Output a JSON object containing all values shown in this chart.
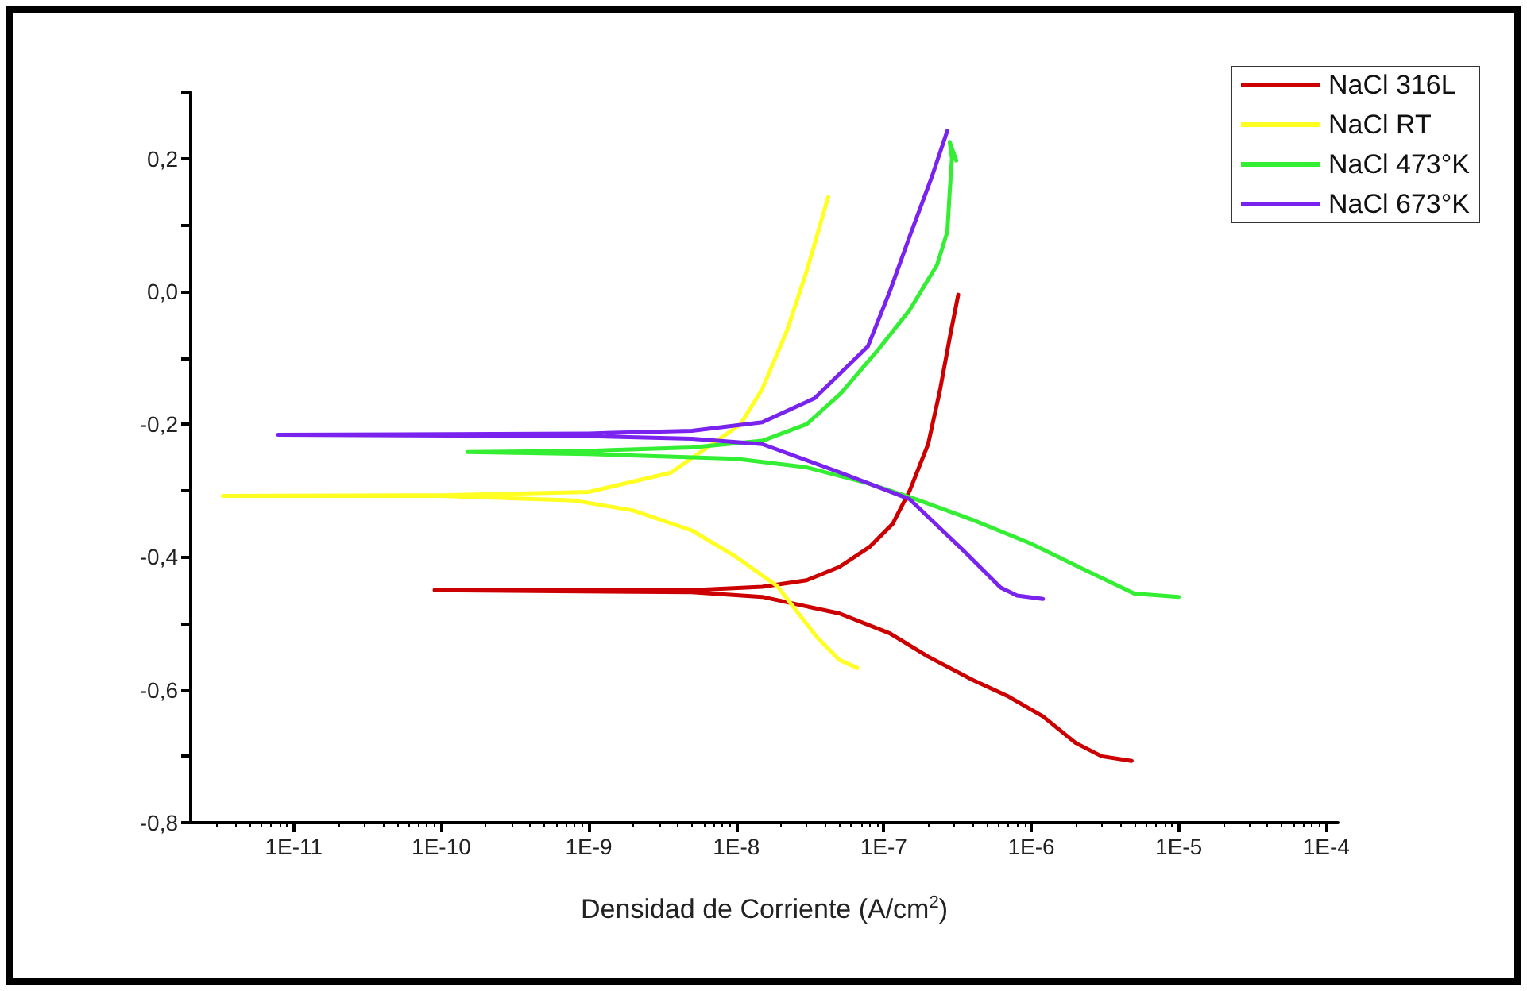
{
  "chart_data": {
    "type": "line",
    "xlabel": "Densidad de Corriente (A/cm$^{2}$)",
    "log": "x",
    "grid": false,
    "legend": "top right",
    "marker": "none",
    "line_style": "solid",
    "xlim": [
      2e-12,
      0.00012
    ],
    "xticks": [
      {
        "value": 1e-11,
        "label": "1E-11"
      },
      {
        "value": 1e-10,
        "label": "1E-10"
      },
      {
        "value": 1e-09,
        "label": "1E-9"
      },
      {
        "value": 1e-08,
        "label": "1E-8"
      },
      {
        "value": 1e-07,
        "label": "1E-7"
      },
      {
        "value": 1e-06,
        "label": "1E-6"
      },
      {
        "value": 1e-05,
        "label": "1E-5"
      },
      {
        "value": 0.0001,
        "label": "1E-4"
      }
    ],
    "ylim": [
      -0.8,
      0.3
    ],
    "yticks": [
      {
        "value": -0.8,
        "label": "-0,8"
      },
      {
        "value": -0.7,
        "label": null
      },
      {
        "value": -0.6,
        "label": "-0,6"
      },
      {
        "value": -0.5,
        "label": null
      },
      {
        "value": -0.4,
        "label": "-0,4"
      },
      {
        "value": -0.3,
        "label": null
      },
      {
        "value": -0.2,
        "label": "-0,2"
      },
      {
        "value": -0.1,
        "label": null
      },
      {
        "value": 0,
        "label": "0,0"
      },
      {
        "value": 0.1,
        "label": null
      },
      {
        "value": 0.2,
        "label": "0,2"
      },
      {
        "value": 0.3,
        "label": null
      }
    ],
    "series": [
      {
        "name": "NaCl 316L",
        "color": "#cc0000",
        "x": [
          4.8e-06,
          3e-06,
          2e-06,
          1.2e-06,
          7e-07,
          4e-07,
          2e-07,
          1.1e-07,
          5e-08,
          1.5e-08,
          5e-09,
          9e-11,
          5e-09,
          1.5e-08,
          3e-08,
          5e-08,
          8e-08,
          1.15e-07,
          1.5e-07,
          2e-07,
          2.4e-07,
          2.8e-07,
          3.2e-07
        ],
        "values": [
          -0.707,
          -0.7,
          -0.68,
          -0.64,
          -0.61,
          -0.585,
          -0.55,
          -0.515,
          -0.485,
          -0.46,
          -0.453,
          -0.45,
          -0.45,
          -0.445,
          -0.435,
          -0.415,
          -0.385,
          -0.35,
          -0.3,
          -0.23,
          -0.15,
          -0.07,
          -0.005
        ]
      },
      {
        "name": "NaCl RT",
        "color": "#ffff22",
        "x": [
          6.6e-08,
          5e-08,
          3.5e-08,
          1.9e-08,
          1e-08,
          5e-09,
          2e-09,
          8e-10,
          1e-10,
          3.3e-12,
          1e-10,
          1e-09,
          3.6e-09,
          1.07e-08,
          1.5e-08,
          2.2e-08,
          3e-08,
          4.2e-08
        ],
        "values": [
          -0.567,
          -0.555,
          -0.52,
          -0.444,
          -0.4,
          -0.36,
          -0.33,
          -0.315,
          -0.308,
          -0.308,
          -0.307,
          -0.302,
          -0.273,
          -0.2,
          -0.147,
          -0.06,
          0.03,
          0.142
        ]
      },
      {
        "name": "NaCl 473°K",
        "color": "#33ee33",
        "x": [
          1e-05,
          5e-06,
          2.1e-06,
          1e-06,
          4e-07,
          1.65e-07,
          7.8e-08,
          3e-08,
          1e-08,
          1e-09,
          1.5e-10,
          1e-09,
          5e-09,
          1.5e-08,
          3e-08,
          5.1e-08,
          9e-08,
          1.5e-07,
          2.3e-07,
          2.7e-07,
          2.8e-07,
          2.9e-07,
          2.8e-07,
          3.1e-07
        ],
        "values": [
          -0.46,
          -0.455,
          -0.415,
          -0.38,
          -0.344,
          -0.313,
          -0.289,
          -0.265,
          -0.252,
          -0.245,
          -0.242,
          -0.24,
          -0.235,
          -0.225,
          -0.2,
          -0.154,
          -0.09,
          -0.028,
          0.04,
          0.09,
          0.15,
          0.2,
          0.225,
          0.197
        ]
      },
      {
        "name": "NaCl 673°K",
        "color": "#7a22ee",
        "x": [
          1.2e-06,
          8e-07,
          6.2e-07,
          3.5e-07,
          1.5e-07,
          5.1e-08,
          1.5e-08,
          5e-09,
          1e-09,
          7.8e-12,
          1e-09,
          5e-09,
          1.5e-08,
          3.4e-08,
          7.8e-08,
          1.1e-07,
          1.5e-07,
          2.1e-07,
          2.7e-07
        ],
        "values": [
          -0.463,
          -0.458,
          -0.446,
          -0.391,
          -0.313,
          -0.273,
          -0.23,
          -0.222,
          -0.218,
          -0.216,
          -0.214,
          -0.21,
          -0.197,
          -0.161,
          -0.083,
          0,
          0.083,
          0.17,
          0.242
        ]
      }
    ]
  }
}
